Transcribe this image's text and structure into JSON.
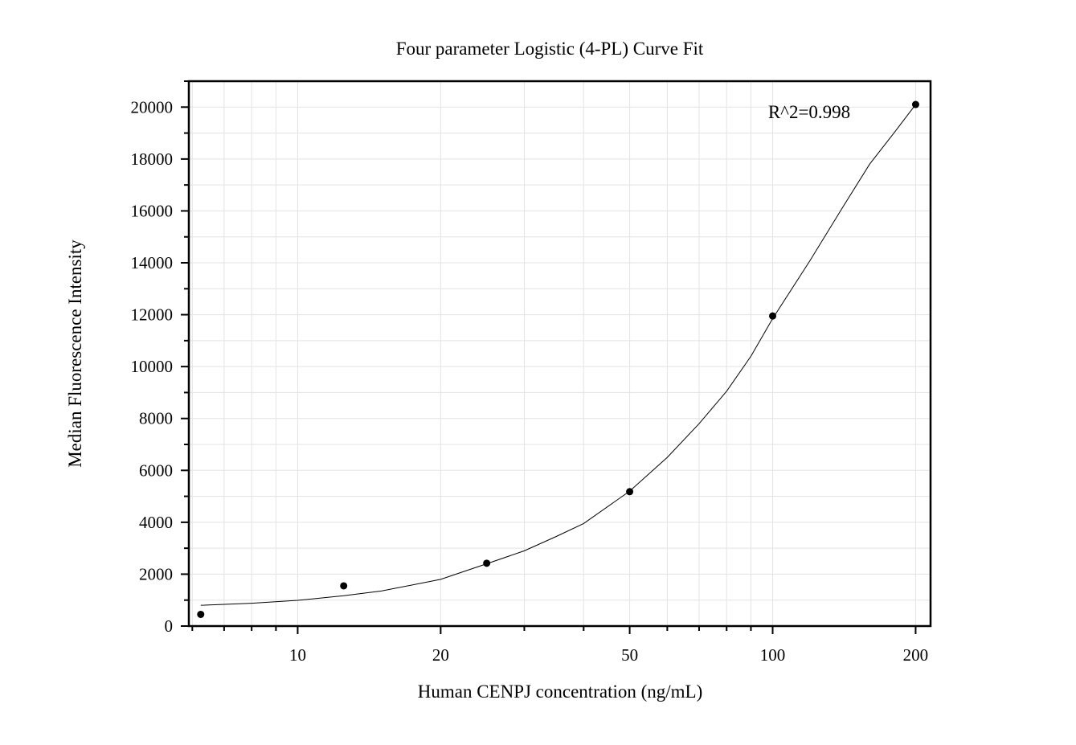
{
  "chart_data": {
    "type": "scatter",
    "title": "Four parameter Logistic (4-PL) Curve Fit",
    "xlabel": "Human CENPJ concentration (ng/mL)",
    "ylabel": "Median Fluorescence Intensity",
    "x_scale": "log",
    "xlim": [
      5.9,
      215
    ],
    "ylim": [
      0,
      21000
    ],
    "x_ticks": [
      10,
      20,
      50,
      100,
      200
    ],
    "x_tick_labels": [
      "10",
      "20",
      "50",
      "100",
      "200"
    ],
    "y_ticks": [
      0,
      2000,
      4000,
      6000,
      8000,
      10000,
      12000,
      14000,
      16000,
      18000,
      20000
    ],
    "y_tick_labels": [
      "0",
      "2000",
      "4000",
      "6000",
      "8000",
      "10000",
      "12000",
      "14000",
      "16000",
      "18000",
      "20000"
    ],
    "grid": true,
    "points": {
      "x": [
        6.25,
        12.5,
        25,
        50,
        100,
        200
      ],
      "y": [
        450,
        1550,
        2420,
        5180,
        11950,
        20100
      ]
    },
    "fit": {
      "model": "4PL",
      "x": [
        6.25,
        8,
        10,
        12.5,
        15,
        20,
        25,
        30,
        35,
        40,
        50,
        60,
        70,
        80,
        90,
        100,
        120,
        140,
        160,
        180,
        200
      ],
      "y": [
        800,
        880,
        990,
        1170,
        1350,
        1800,
        2400,
        2900,
        3450,
        3950,
        5200,
        6500,
        7800,
        9050,
        10400,
        11850,
        14100,
        16100,
        17800,
        19000,
        20100
      ]
    },
    "annotation": "R^2=0.998"
  }
}
